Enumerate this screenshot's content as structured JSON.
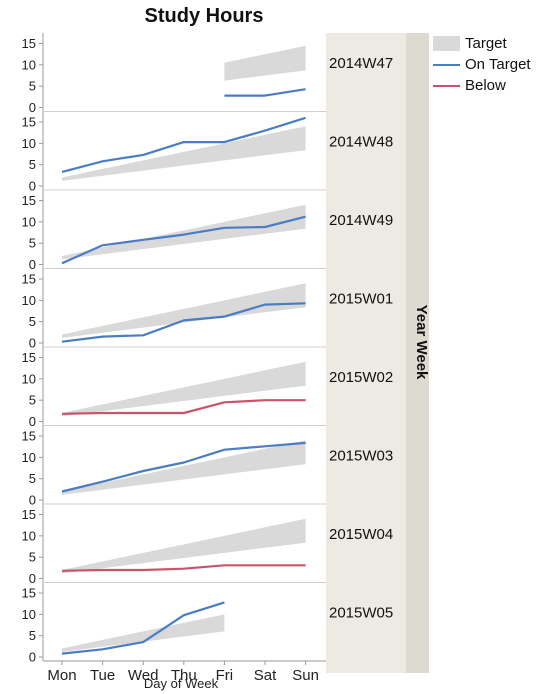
{
  "chart_data": {
    "type": "line",
    "title": "Study Hours",
    "xlabel": "Day of Week",
    "ylabel": "",
    "facet_label": "Year Week",
    "categories": [
      "Mon",
      "Tue",
      "Wed",
      "Thu",
      "Fri",
      "Sat",
      "Sun"
    ],
    "yticks": [
      0,
      5,
      10,
      15
    ],
    "ylim": [
      0,
      17
    ],
    "legend": [
      {
        "name": "Target",
        "kind": "band",
        "color": "#d9d9d9"
      },
      {
        "name": "On Target",
        "kind": "line",
        "color": "#4a7dc4"
      },
      {
        "name": "Below",
        "kind": "line",
        "color": "#c9546a"
      }
    ],
    "panels": [
      {
        "label": "2014W47",
        "start_index": 4,
        "target_low": [
          null,
          null,
          null,
          null,
          6.3,
          7.5,
          8.7
        ],
        "target_high": [
          null,
          null,
          null,
          null,
          10.5,
          12.5,
          14.5
        ],
        "status": "On Target",
        "values": [
          null,
          null,
          null,
          null,
          2.8,
          2.8,
          4.3
        ]
      },
      {
        "label": "2014W48",
        "start_index": 0,
        "target_low": [
          1.2,
          2.4,
          3.6,
          4.8,
          6.0,
          7.2,
          8.4
        ],
        "target_high": [
          2.0,
          4.0,
          6.0,
          8.0,
          10.0,
          12.0,
          14.0
        ],
        "status": "On Target",
        "values": [
          3.3,
          5.8,
          7.3,
          10.3,
          10.3,
          13.0,
          16.0
        ]
      },
      {
        "label": "2014W49",
        "start_index": 0,
        "target_low": [
          1.2,
          2.4,
          3.6,
          4.8,
          6.0,
          7.2,
          8.4
        ],
        "target_high": [
          2.0,
          4.0,
          6.0,
          8.0,
          10.0,
          12.0,
          14.0
        ],
        "status": "On Target",
        "values": [
          0.3,
          4.5,
          5.8,
          7.0,
          8.6,
          8.8,
          11.2
        ]
      },
      {
        "label": "2015W01",
        "start_index": 0,
        "target_low": [
          1.2,
          2.4,
          3.6,
          4.8,
          6.0,
          7.2,
          8.4
        ],
        "target_high": [
          2.0,
          4.0,
          6.0,
          8.0,
          10.0,
          12.0,
          14.0
        ],
        "status": "On Target",
        "values": [
          0.3,
          1.5,
          1.8,
          5.3,
          6.2,
          9.0,
          9.3
        ]
      },
      {
        "label": "2015W02",
        "start_index": 0,
        "target_low": [
          1.2,
          2.4,
          3.6,
          4.8,
          6.0,
          7.2,
          8.4
        ],
        "target_high": [
          2.0,
          4.0,
          6.0,
          8.0,
          10.0,
          12.0,
          14.0
        ],
        "status": "Below",
        "values": [
          1.8,
          2.0,
          2.0,
          2.0,
          4.5,
          5.0,
          5.0
        ]
      },
      {
        "label": "2015W03",
        "start_index": 0,
        "target_low": [
          1.2,
          2.4,
          3.6,
          4.8,
          6.0,
          7.2,
          8.4
        ],
        "target_high": [
          2.0,
          4.0,
          6.0,
          8.0,
          10.0,
          12.0,
          14.0
        ],
        "status": "On Target",
        "values": [
          2.0,
          4.3,
          6.8,
          8.8,
          11.8,
          12.6,
          13.4
        ]
      },
      {
        "label": "2015W04",
        "start_index": 0,
        "target_low": [
          1.2,
          2.4,
          3.6,
          4.8,
          6.0,
          7.2,
          8.4
        ],
        "target_high": [
          2.0,
          4.0,
          6.0,
          8.0,
          10.0,
          12.0,
          14.0
        ],
        "status": "Below",
        "values": [
          1.8,
          2.0,
          2.0,
          2.3,
          3.1,
          3.1,
          3.1
        ]
      },
      {
        "label": "2015W05",
        "start_index": 0,
        "target_low": [
          1.2,
          2.4,
          3.6,
          4.8,
          6.0,
          null,
          null
        ],
        "target_high": [
          2.0,
          4.0,
          6.0,
          8.0,
          10.0,
          null,
          null
        ],
        "status": "On Target",
        "values": [
          0.8,
          1.8,
          3.5,
          9.8,
          12.8,
          null,
          null
        ]
      }
    ]
  }
}
